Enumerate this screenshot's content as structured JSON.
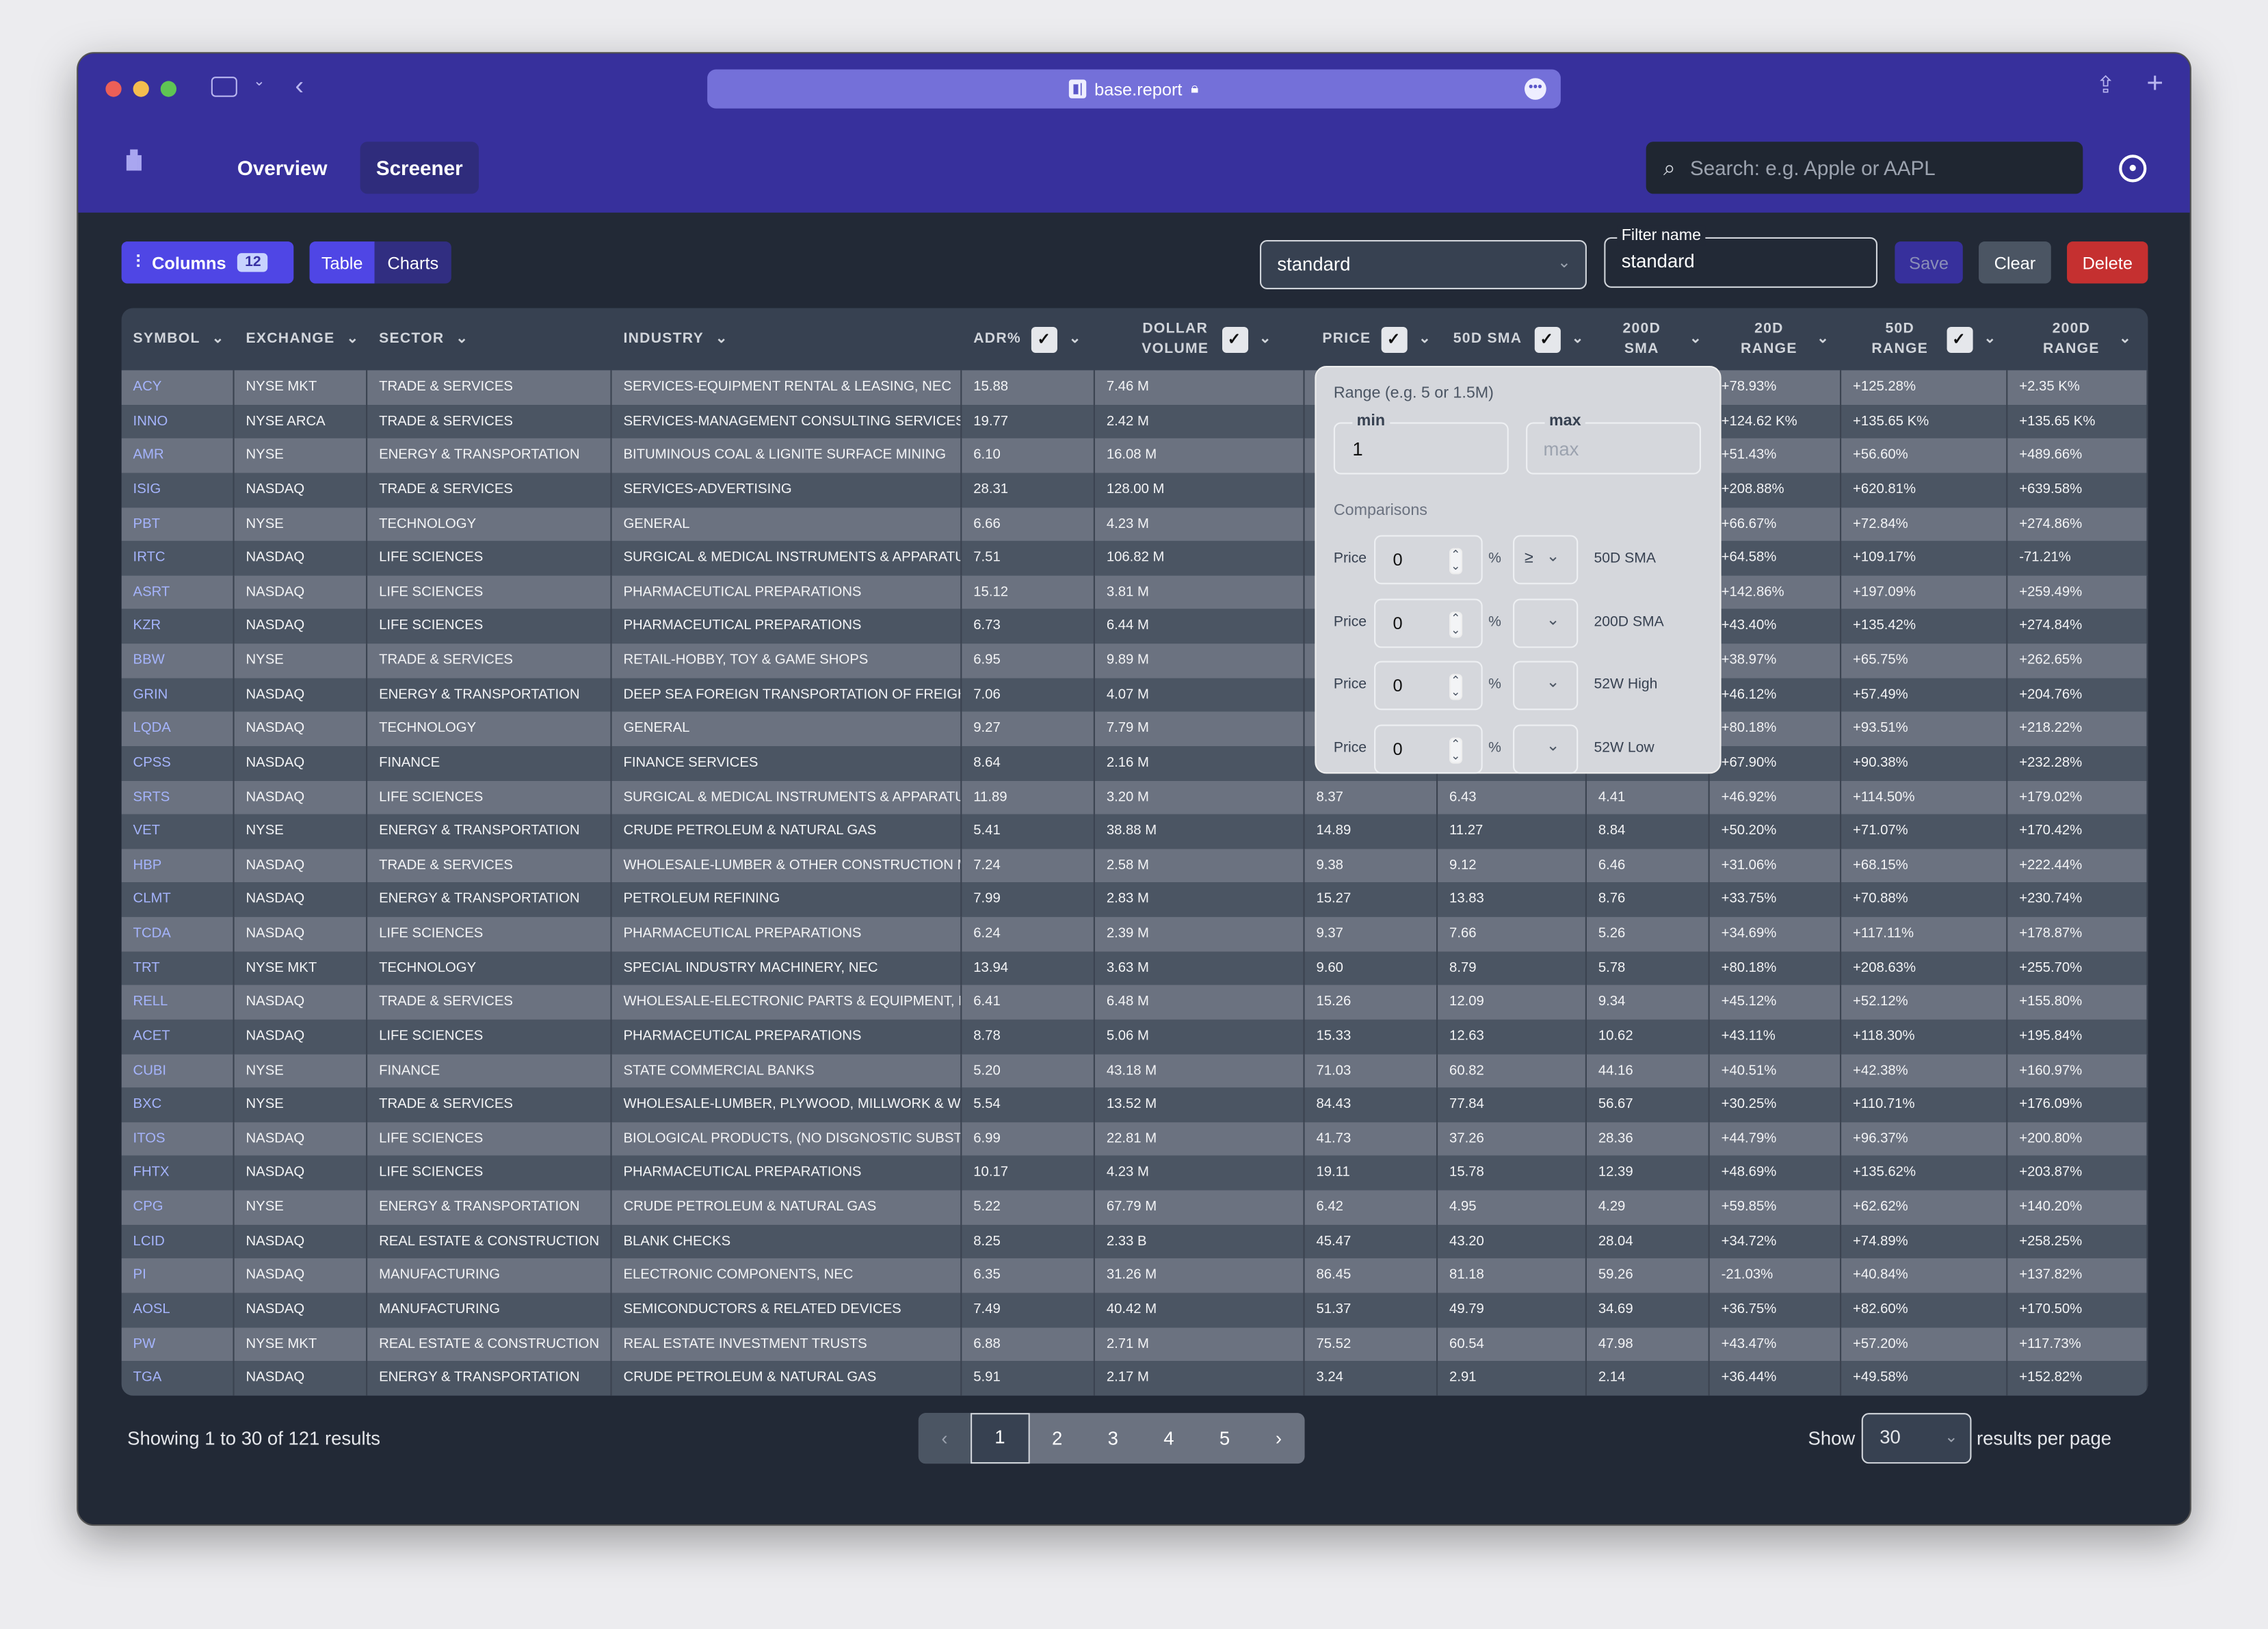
{
  "browser": {
    "url": "base.report"
  },
  "nav": {
    "overview": "Overview",
    "screener": "Screener",
    "search_placeholder": "Search: e.g. Apple or AAPL"
  },
  "toolbar": {
    "columns_label": "Columns",
    "columns_count": "12",
    "table": "Table",
    "charts": "Charts",
    "preset": "standard",
    "filter_name_label": "Filter name",
    "filter_name": "standard",
    "save": "Save",
    "clear": "Clear",
    "delete": "Delete"
  },
  "colors": {
    "brand": "#37309c",
    "accent": "#4f46e5",
    "delete": "#c53030"
  },
  "columns": [
    {
      "label": "SYMBOL",
      "check": false
    },
    {
      "label": "EXCHANGE",
      "check": false
    },
    {
      "label": "SECTOR",
      "check": false
    },
    {
      "label": "INDUSTRY",
      "check": false
    },
    {
      "label": "ADR%",
      "check": true
    },
    {
      "label": "DOLLAR VOLUME",
      "check": true
    },
    {
      "label": "PRICE",
      "check": true
    },
    {
      "label": "50D SMA",
      "check": true
    },
    {
      "label": "200D SMA",
      "check": false
    },
    {
      "label": "20D RANGE",
      "check": false
    },
    {
      "label": "50D RANGE",
      "check": true
    },
    {
      "label": "200D RANGE",
      "check": false
    }
  ],
  "rows": [
    [
      "ACY",
      "NYSE MKT",
      "TRADE & SERVICES",
      "SERVICES-EQUIPMENT RENTAL & LEASING, NEC",
      "15.88",
      "7.46 M",
      "",
      "",
      "",
      "+78.93%",
      "+125.28%",
      "+2.35 K%"
    ],
    [
      "INNO",
      "NYSE ARCA",
      "TRADE & SERVICES",
      "SERVICES-MANAGEMENT CONSULTING SERVICES",
      "19.77",
      "2.42 M",
      "",
      "",
      "",
      "+124.62 K%",
      "+135.65 K%",
      "+135.65 K%"
    ],
    [
      "AMR",
      "NYSE",
      "ENERGY & TRANSPORTATION",
      "BITUMINOUS COAL & LIGNITE SURFACE MINING",
      "6.10",
      "16.08 M",
      "",
      "",
      "",
      "+51.43%",
      "+56.60%",
      "+489.66%"
    ],
    [
      "ISIG",
      "NASDAQ",
      "TRADE & SERVICES",
      "SERVICES-ADVERTISING",
      "28.31",
      "128.00 M",
      "",
      "",
      "",
      "+208.88%",
      "+620.81%",
      "+639.58%"
    ],
    [
      "PBT",
      "NYSE",
      "TECHNOLOGY",
      "GENERAL",
      "6.66",
      "4.23 M",
      "",
      "",
      "",
      "+66.67%",
      "+72.84%",
      "+274.86%"
    ],
    [
      "IRTC",
      "NASDAQ",
      "LIFE SCIENCES",
      "SURGICAL & MEDICAL INSTRUMENTS & APPARATUS",
      "7.51",
      "106.82 M",
      "",
      "",
      "",
      "+64.58%",
      "+109.17%",
      "-71.21%"
    ],
    [
      "ASRT",
      "NASDAQ",
      "LIFE SCIENCES",
      "PHARMACEUTICAL PREPARATIONS",
      "15.12",
      "3.81 M",
      "",
      "",
      "",
      "+142.86%",
      "+197.09%",
      "+259.49%"
    ],
    [
      "KZR",
      "NASDAQ",
      "LIFE SCIENCES",
      "PHARMACEUTICAL PREPARATIONS",
      "6.73",
      "6.44 M",
      "",
      "",
      "",
      "+43.40%",
      "+135.42%",
      "+274.84%"
    ],
    [
      "BBW",
      "NYSE",
      "TRADE & SERVICES",
      "RETAIL-HOBBY, TOY & GAME SHOPS",
      "6.95",
      "9.89 M",
      "",
      "",
      "",
      "+38.97%",
      "+65.75%",
      "+262.65%"
    ],
    [
      "GRIN",
      "NASDAQ",
      "ENERGY & TRANSPORTATION",
      "DEEP SEA FOREIGN TRANSPORTATION OF FREIGHT",
      "7.06",
      "4.07 M",
      "",
      "",
      "",
      "+46.12%",
      "+57.49%",
      "+204.76%"
    ],
    [
      "LQDA",
      "NASDAQ",
      "TECHNOLOGY",
      "GENERAL",
      "9.27",
      "7.79 M",
      "",
      "",
      "",
      "+80.18%",
      "+93.51%",
      "+218.22%"
    ],
    [
      "CPSS",
      "NASDAQ",
      "FINANCE",
      "FINANCE SERVICES",
      "8.64",
      "2.16 M",
      "",
      "",
      "",
      "+67.90%",
      "+90.38%",
      "+232.28%"
    ],
    [
      "SRTS",
      "NASDAQ",
      "LIFE SCIENCES",
      "SURGICAL & MEDICAL INSTRUMENTS & APPARATUS",
      "11.89",
      "3.20 M",
      "8.37",
      "6.43",
      "4.41",
      "+46.92%",
      "+114.50%",
      "+179.02%"
    ],
    [
      "VET",
      "NYSE",
      "ENERGY & TRANSPORTATION",
      "CRUDE PETROLEUM & NATURAL GAS",
      "5.41",
      "38.88 M",
      "14.89",
      "11.27",
      "8.84",
      "+50.20%",
      "+71.07%",
      "+170.42%"
    ],
    [
      "HBP",
      "NASDAQ",
      "TRADE & SERVICES",
      "WHOLESALE-LUMBER & OTHER CONSTRUCTION MATERIALS",
      "7.24",
      "2.58 M",
      "9.38",
      "9.12",
      "6.46",
      "+31.06%",
      "+68.15%",
      "+222.44%"
    ],
    [
      "CLMT",
      "NASDAQ",
      "ENERGY & TRANSPORTATION",
      "PETROLEUM REFINING",
      "7.99",
      "2.83 M",
      "15.27",
      "13.83",
      "8.76",
      "+33.75%",
      "+70.88%",
      "+230.74%"
    ],
    [
      "TCDA",
      "NASDAQ",
      "LIFE SCIENCES",
      "PHARMACEUTICAL PREPARATIONS",
      "6.24",
      "2.39 M",
      "9.37",
      "7.66",
      "5.26",
      "+34.69%",
      "+117.11%",
      "+178.87%"
    ],
    [
      "TRT",
      "NYSE MKT",
      "TECHNOLOGY",
      "SPECIAL INDUSTRY MACHINERY, NEC",
      "13.94",
      "3.63 M",
      "9.60",
      "8.79",
      "5.78",
      "+80.18%",
      "+208.63%",
      "+255.70%"
    ],
    [
      "RELL",
      "NASDAQ",
      "TRADE & SERVICES",
      "WHOLESALE-ELECTRONIC PARTS & EQUIPMENT, NEC",
      "6.41",
      "6.48 M",
      "15.26",
      "12.09",
      "9.34",
      "+45.12%",
      "+52.12%",
      "+155.80%"
    ],
    [
      "ACET",
      "NASDAQ",
      "LIFE SCIENCES",
      "PHARMACEUTICAL PREPARATIONS",
      "8.78",
      "5.06 M",
      "15.33",
      "12.63",
      "10.62",
      "+43.11%",
      "+118.30%",
      "+195.84%"
    ],
    [
      "CUBI",
      "NYSE",
      "FINANCE",
      "STATE COMMERCIAL BANKS",
      "5.20",
      "43.18 M",
      "71.03",
      "60.82",
      "44.16",
      "+40.51%",
      "+42.38%",
      "+160.97%"
    ],
    [
      "BXC",
      "NYSE",
      "TRADE & SERVICES",
      "WHOLESALE-LUMBER, PLYWOOD, MILLWORK & WOOD PANELS",
      "5.54",
      "13.52 M",
      "84.43",
      "77.84",
      "56.67",
      "+30.25%",
      "+110.71%",
      "+176.09%"
    ],
    [
      "ITOS",
      "NASDAQ",
      "LIFE SCIENCES",
      "BIOLOGICAL PRODUCTS, (NO DISGNOSTIC SUBSTANCES)",
      "6.99",
      "22.81 M",
      "41.73",
      "37.26",
      "28.36",
      "+44.79%",
      "+96.37%",
      "+200.80%"
    ],
    [
      "FHTX",
      "NASDAQ",
      "LIFE SCIENCES",
      "PHARMACEUTICAL PREPARATIONS",
      "10.17",
      "4.23 M",
      "19.11",
      "15.78",
      "12.39",
      "+48.69%",
      "+135.62%",
      "+203.87%"
    ],
    [
      "CPG",
      "NYSE",
      "ENERGY & TRANSPORTATION",
      "CRUDE PETROLEUM & NATURAL GAS",
      "5.22",
      "67.79 M",
      "6.42",
      "4.95",
      "4.29",
      "+59.85%",
      "+62.62%",
      "+140.20%"
    ],
    [
      "LCID",
      "NASDAQ",
      "REAL ESTATE & CONSTRUCTION",
      "BLANK CHECKS",
      "8.25",
      "2.33 B",
      "45.47",
      "43.20",
      "28.04",
      "+34.72%",
      "+74.89%",
      "+258.25%"
    ],
    [
      "PI",
      "NASDAQ",
      "MANUFACTURING",
      "ELECTRONIC COMPONENTS, NEC",
      "6.35",
      "31.26 M",
      "86.45",
      "81.18",
      "59.26",
      "-21.03%",
      "+40.84%",
      "+137.82%"
    ],
    [
      "AOSL",
      "NASDAQ",
      "MANUFACTURING",
      "SEMICONDUCTORS & RELATED DEVICES",
      "7.49",
      "40.42 M",
      "51.37",
      "49.79",
      "34.69",
      "+36.75%",
      "+82.60%",
      "+170.50%"
    ],
    [
      "PW",
      "NYSE MKT",
      "REAL ESTATE & CONSTRUCTION",
      "REAL ESTATE INVESTMENT TRUSTS",
      "6.88",
      "2.71 M",
      "75.52",
      "60.54",
      "47.98",
      "+43.47%",
      "+57.20%",
      "+117.73%"
    ],
    [
      "TGA",
      "NASDAQ",
      "ENERGY & TRANSPORTATION",
      "CRUDE PETROLEUM & NATURAL GAS",
      "5.91",
      "2.17 M",
      "3.24",
      "2.91",
      "2.14",
      "+36.44%",
      "+49.58%",
      "+152.82%"
    ]
  ],
  "popover": {
    "range_label": "Range (e.g. 5 or 1.5M)",
    "min_label": "min",
    "min_value": "1",
    "max_label": "max",
    "max_placeholder": "max",
    "comparisons_label": "Comparisons",
    "comparisons": [
      {
        "left": "Price",
        "value": "0",
        "unit": "%",
        "op": "≥",
        "target": "50D SMA"
      },
      {
        "left": "Price",
        "value": "0",
        "unit": "%",
        "op": "",
        "target": "200D SMA"
      },
      {
        "left": "Price",
        "value": "0",
        "unit": "%",
        "op": "",
        "target": "52W High"
      },
      {
        "left": "Price",
        "value": "0",
        "unit": "%",
        "op": "",
        "target": "52W Low"
      }
    ]
  },
  "footer": {
    "showing": "Showing 1 to 30 of 121 results",
    "pages": [
      "1",
      "2",
      "3",
      "4",
      "5"
    ],
    "current_page": "1",
    "show": "Show",
    "per_page": "30",
    "per_page_suffix": "results per page"
  }
}
